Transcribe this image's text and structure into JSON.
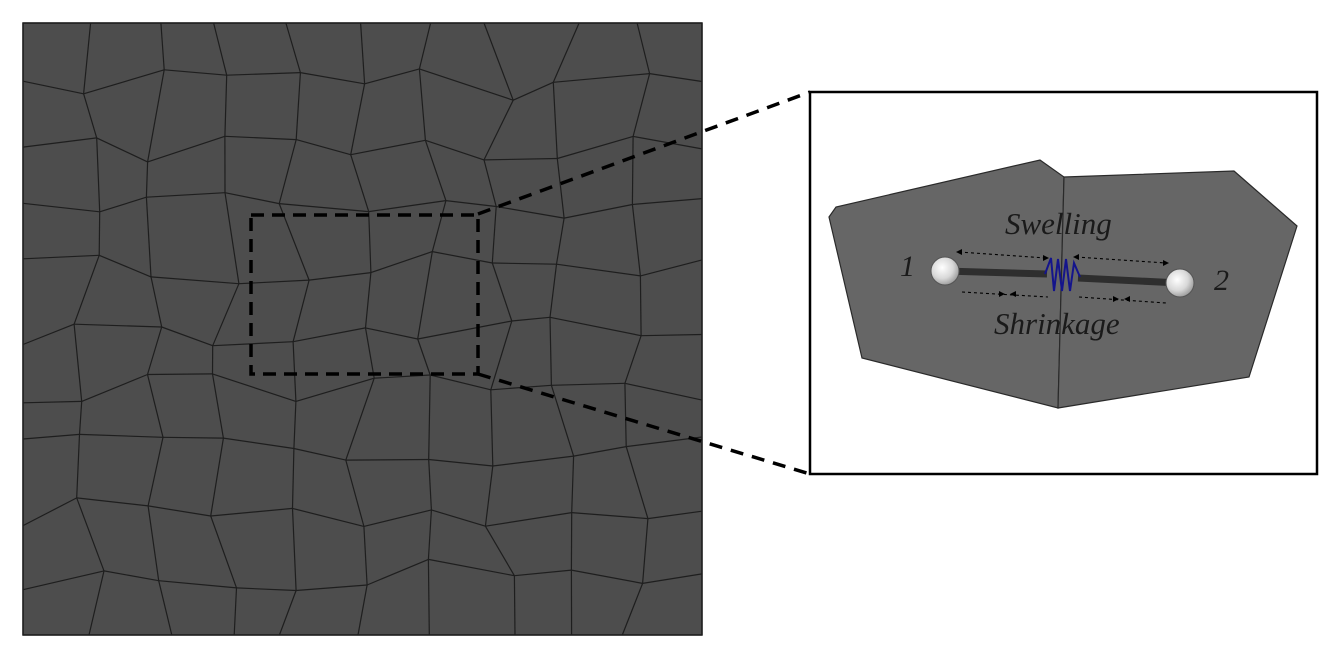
{
  "diagram": {
    "labels": {
      "node_1": "1",
      "node_2": "2",
      "swelling": "Swelling",
      "shrinkage": "Shrinkage"
    },
    "colors": {
      "mesh_fill": "#4d4d4d",
      "mesh_lines": "#1e1e1e",
      "cell_fill": "#666666",
      "spring": "#14148c",
      "beam": "#2e2e2e",
      "frame": "#000000"
    },
    "elements": {
      "mesh": "voronoi-mesh",
      "zoom_box": "dashed-zoom-box",
      "cells": [
        "left-cell",
        "right-cell"
      ],
      "nodes": [
        "node-1",
        "node-2"
      ],
      "connector": "spring"
    }
  }
}
